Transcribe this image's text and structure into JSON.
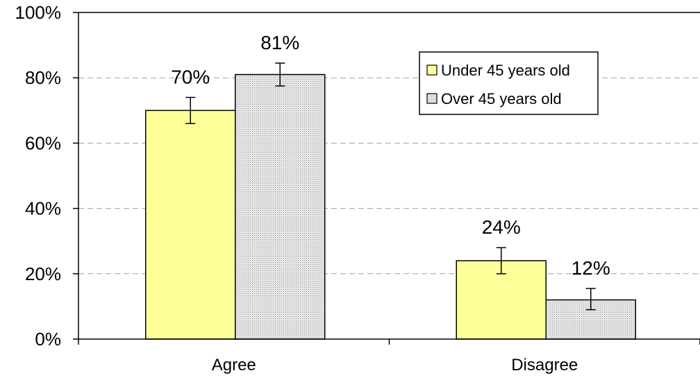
{
  "chart_data": {
    "type": "bar",
    "categories": [
      "Agree",
      "Disagree"
    ],
    "series": [
      {
        "name": "Under 45 years old",
        "values": [
          70,
          24
        ],
        "labels": [
          "70%",
          "24%"
        ],
        "error_low": [
          66,
          20
        ],
        "error_high": [
          74,
          28
        ],
        "color": "#ffff99",
        "pattern": "solid"
      },
      {
        "name": "Over 45 years old",
        "values": [
          81,
          12
        ],
        "labels": [
          "81%",
          "12%"
        ],
        "error_low": [
          77.5,
          9
        ],
        "error_high": [
          84.5,
          15.5
        ],
        "color": "#e6e6e6",
        "pattern": "dotted"
      }
    ],
    "y_ticks": [
      "0%",
      "20%",
      "40%",
      "60%",
      "80%",
      "100%"
    ],
    "y_tick_values": [
      0,
      20,
      40,
      60,
      80,
      100
    ],
    "ylim": [
      0,
      100
    ],
    "grid": "horizontal dashed",
    "legend_position": "top-right",
    "xlabel": "",
    "ylabel": "",
    "title": ""
  }
}
